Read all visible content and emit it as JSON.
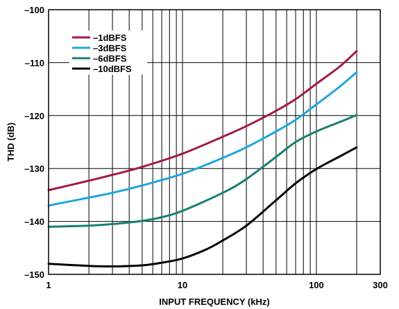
{
  "chart_data": {
    "type": "line",
    "title": "",
    "xlabel": "INPUT FREQUENCY (kHz)",
    "ylabel": "THD (dB)",
    "x_scale": "log",
    "xlim": [
      1,
      300
    ],
    "ylim": [
      -150,
      -100
    ],
    "x_ticks": [
      1,
      10,
      100,
      300
    ],
    "x_tick_labels": [
      "1",
      "10",
      "100",
      "300"
    ],
    "y_ticks": [
      -100,
      -110,
      -120,
      -130,
      -140,
      -150
    ],
    "y_tick_labels": [
      "–100",
      "–110",
      "–120",
      "–130",
      "–140",
      "–150"
    ],
    "grid": true,
    "legend_position": "top-left",
    "series": [
      {
        "name": "–1dBFS",
        "color": "#a3194b",
        "x": [
          1,
          2,
          3,
          5,
          10,
          20,
          30,
          50,
          70,
          100,
          150,
          200
        ],
        "y": [
          -134.1,
          -132.3,
          -131.2,
          -129.7,
          -127.2,
          -124.0,
          -122.0,
          -119.1,
          -116.9,
          -114.0,
          -110.7,
          -107.8
        ]
      },
      {
        "name": "–3dBFS",
        "color": "#1ea5dc",
        "x": [
          1,
          2,
          3,
          5,
          10,
          20,
          30,
          50,
          70,
          100,
          150,
          200
        ],
        "y": [
          -137.0,
          -135.5,
          -134.6,
          -133.2,
          -131.0,
          -128.0,
          -126.0,
          -123.0,
          -120.8,
          -117.9,
          -114.5,
          -111.8
        ]
      },
      {
        "name": "–6dBFS",
        "color": "#177e74",
        "x": [
          1,
          2,
          3,
          5,
          7,
          10,
          20,
          30,
          50,
          70,
          100,
          150,
          200
        ],
        "y": [
          -141.0,
          -140.8,
          -140.5,
          -139.9,
          -139.2,
          -138.0,
          -134.6,
          -132.0,
          -127.8,
          -125.0,
          -123.0,
          -121.2,
          -119.9
        ]
      },
      {
        "name": "–10dBFS",
        "color": "#000000",
        "x": [
          1,
          2,
          3,
          5,
          7,
          10,
          15,
          20,
          30,
          50,
          70,
          100,
          150,
          200
        ],
        "y": [
          -148.0,
          -148.4,
          -148.5,
          -148.3,
          -147.8,
          -147.0,
          -145.3,
          -143.6,
          -140.8,
          -136.0,
          -132.8,
          -130.1,
          -127.7,
          -126.0
        ]
      }
    ]
  }
}
